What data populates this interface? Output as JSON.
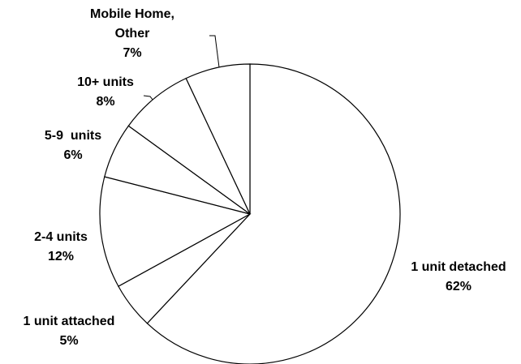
{
  "chart_data": {
    "type": "pie",
    "categories": [
      "1 unit detached",
      "1 unit attached",
      "2-4 units",
      "5-9  units",
      "10+ units",
      "Mobile Home, Other"
    ],
    "values": [
      62,
      5,
      12,
      6,
      8,
      7
    ],
    "value_labels": [
      "62%",
      "5%",
      "12%",
      "6%",
      "8%",
      "7%"
    ],
    "color": "#ffffff"
  }
}
